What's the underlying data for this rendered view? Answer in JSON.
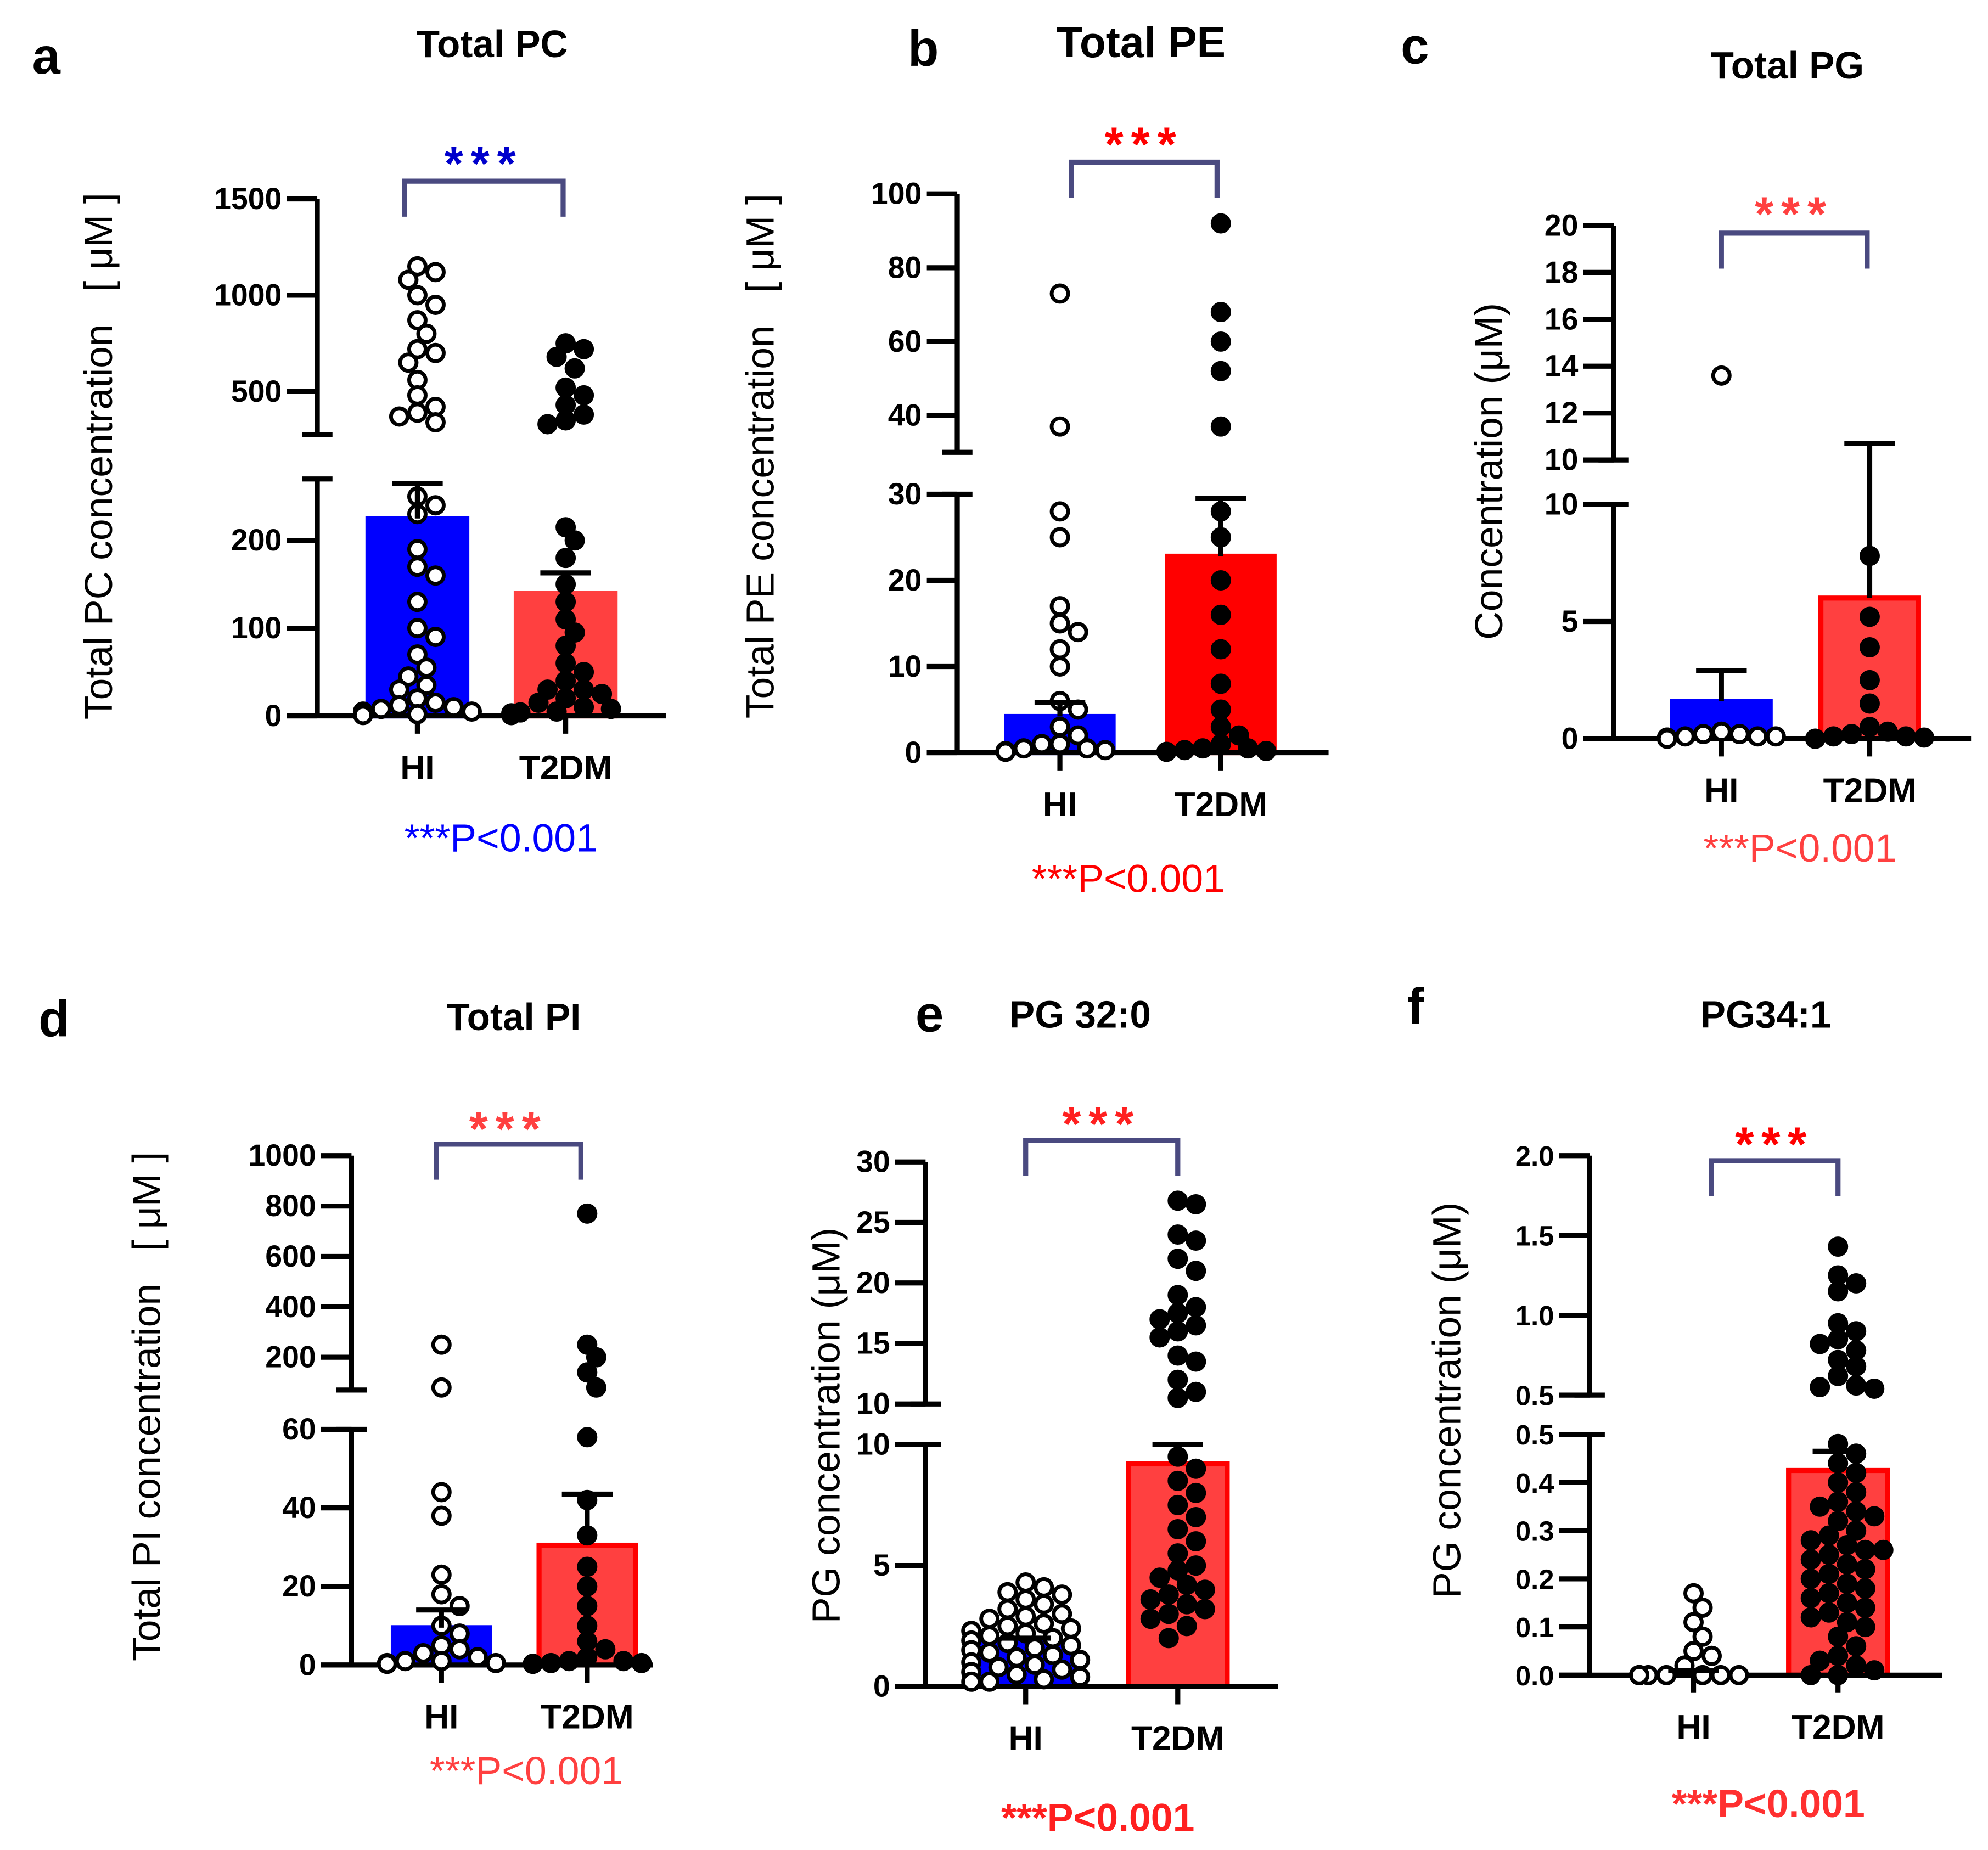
{
  "chart_data": [
    {
      "type": "bar",
      "letter": "a",
      "title": "Total PC",
      "ylabel": "Total PC concentration   [ μM ]",
      "ylabel_bold": false,
      "categories": [
        "HI",
        "T2DM"
      ],
      "lower_range": [
        0,
        270
      ],
      "lower_ticks": [
        "0",
        "100",
        "200"
      ],
      "upper_range": [
        276,
        1500
      ],
      "upper_ticks": [
        "500",
        "1000",
        "1500"
      ],
      "series": [
        {
          "name": "HI",
          "mean": 225,
          "sem_top": 265,
          "color": "#0000ff",
          "border": "#0000ff",
          "marker": "open",
          "points": [
            1150,
            1120,
            1080,
            1000,
            950,
            870,
            800,
            720,
            700,
            650,
            560,
            480,
            420,
            390,
            370,
            340,
            250,
            240,
            230,
            190,
            170,
            160,
            130,
            100,
            90,
            70,
            55,
            45,
            35,
            30,
            20,
            15,
            12,
            10,
            8,
            5,
            5,
            3,
            2,
            1
          ]
        },
        {
          "name": "T2DM",
          "mean": 140,
          "sem_top": 163,
          "color": "#ff4040",
          "border": "#ff4040",
          "marker": "filled",
          "points": [
            750,
            720,
            680,
            620,
            520,
            480,
            430,
            380,
            350,
            330,
            215,
            200,
            180,
            150,
            130,
            110,
            95,
            80,
            60,
            50,
            40,
            30,
            25,
            20,
            15,
            10,
            8,
            5,
            4,
            3,
            2,
            1,
            1,
            30
          ]
        }
      ],
      "significance": "***",
      "sig_color": "#0000cc",
      "p_text": "***P<0.001",
      "p_color": "#0000ff",
      "p_bold": false
    },
    {
      "type": "bar",
      "letter": "b",
      "title": "Total PE",
      "ylabel": "Total PE concentration   [ μM ]",
      "ylabel_bold": false,
      "categories": [
        "HI",
        "T2DM"
      ],
      "lower_range": [
        0,
        30
      ],
      "lower_ticks": [
        "0",
        "10",
        "20",
        "30"
      ],
      "upper_range": [
        30,
        100
      ],
      "upper_ticks": [
        "40",
        "60",
        "80",
        "100"
      ],
      "series": [
        {
          "name": "HI",
          "mean": 4.2,
          "sem_top": 5.8,
          "color": "#0000ff",
          "border": "#0000ff",
          "marker": "open",
          "points": [
            73,
            37,
            28,
            25,
            17,
            15,
            14,
            12,
            10,
            6,
            5,
            3,
            2,
            1,
            1,
            0.5,
            0.5,
            0.3,
            0.2,
            0.1
          ]
        },
        {
          "name": "T2DM",
          "mean": 22.8,
          "sem_top": 29.5,
          "color": "#ff0000",
          "border": "#ff0000",
          "marker": "filled",
          "points": [
            92,
            68,
            60,
            52,
            37,
            28,
            25,
            20,
            16,
            12,
            8,
            5,
            3,
            2,
            1,
            0.5,
            0.5,
            0.3,
            0.2,
            0.1
          ]
        }
      ],
      "significance": "***",
      "sig_color": "#ff0000",
      "p_text": "***P<0.001",
      "p_color": "#ff0000",
      "p_bold": false
    },
    {
      "type": "bar",
      "letter": "c",
      "title": "Total PG",
      "ylabel": "Concentration (μM)",
      "ylabel_bold": false,
      "categories": [
        "HI",
        "T2DM"
      ],
      "lower_range": [
        0,
        10
      ],
      "lower_ticks": [
        "0",
        "5",
        "10"
      ],
      "upper_range": [
        10,
        20
      ],
      "upper_ticks": [
        "10",
        "12",
        "14",
        "16",
        "18",
        "20"
      ],
      "series": [
        {
          "name": "HI",
          "mean": 1.6,
          "sem_top": 2.9,
          "color": "#0000ff",
          "border": "#0000ff",
          "marker": "open",
          "points": [
            13.6,
            0.3,
            0.2,
            0.2,
            0.1,
            0.1,
            0.1,
            0.05,
            0.05,
            0
          ]
        },
        {
          "name": "T2DM",
          "mean": 6.0,
          "sem_top": 10.7,
          "color": "#ff4040",
          "border": "#ff0000",
          "marker": "filled",
          "points": [
            7.8,
            5.2,
            3.9,
            2.5,
            1.5,
            0.5,
            0.3,
            0.2,
            0.1,
            0.1,
            0.05,
            0,
            0,
            0
          ]
        }
      ],
      "significance": "***",
      "sig_color": "#ff4040",
      "p_text": "***P<0.001",
      "p_color": "#ff4040",
      "p_bold": false
    },
    {
      "type": "bar",
      "letter": "d",
      "title": "Total PI",
      "ylabel": "Total PI concentration   [ μM ]",
      "ylabel_bold": false,
      "categories": [
        "HI",
        "T2DM"
      ],
      "lower_range": [
        0,
        60
      ],
      "lower_ticks": [
        "0",
        "20",
        "40",
        "60"
      ],
      "upper_range": [
        70,
        1000
      ],
      "upper_ticks": [
        "200",
        "400",
        "600",
        "800",
        "1000"
      ],
      "series": [
        {
          "name": "HI",
          "mean": 9.5,
          "sem_top": 14,
          "color": "#0000ff",
          "border": "#0000ff",
          "marker": "open",
          "points": [
            250,
            80,
            44,
            38,
            23,
            18,
            15,
            10,
            8,
            5,
            4,
            3,
            2,
            1,
            1,
            0.5,
            0.5,
            0.3
          ]
        },
        {
          "name": "T2DM",
          "mean": 30.5,
          "sem_top": 43.5,
          "color": "#ff4040",
          "border": "#ff0000",
          "marker": "filled",
          "points": [
            770,
            250,
            200,
            140,
            80,
            58,
            42,
            33,
            25,
            20,
            15,
            10,
            6,
            4,
            2,
            1,
            1,
            0.5,
            0.5,
            0.3
          ]
        }
      ],
      "significance": "***",
      "sig_color": "#ff4040",
      "p_text": "***P<0.001",
      "p_color": "#ff4040",
      "p_bold": false
    },
    {
      "type": "bar",
      "letter": "e",
      "title": "PG 32:0",
      "ylabel": "PG concentration (μM)",
      "ylabel_bold": false,
      "categories": [
        "HI",
        "T2DM"
      ],
      "lower_range": [
        0,
        10
      ],
      "lower_ticks": [
        "0",
        "5",
        "10"
      ],
      "upper_range": [
        10,
        30
      ],
      "upper_ticks": [
        "10",
        "15",
        "20",
        "25",
        "30"
      ],
      "series": [
        {
          "name": "HI",
          "mean": 1.8,
          "sem_top": 2.0,
          "color": "#0000ff",
          "border": "#0000ff",
          "marker": "open",
          "points": [
            4.3,
            4.1,
            3.9,
            3.8,
            3.6,
            3.4,
            3.2,
            3.0,
            2.9,
            2.8,
            2.6,
            2.5,
            2.4,
            2.3,
            2.2,
            2.1,
            2.0,
            1.9,
            1.8,
            1.7,
            1.6,
            1.5,
            1.4,
            1.3,
            1.2,
            1.1,
            1.0,
            0.9,
            0.8,
            0.7,
            0.6,
            0.5,
            0.4,
            0.3,
            0.2,
            0.2
          ]
        },
        {
          "name": "T2DM",
          "mean": 9.2,
          "sem_top": 10.0,
          "color": "#ff4040",
          "border": "#ff0000",
          "marker": "filled",
          "points": [
            26.8,
            26.5,
            24,
            23.5,
            22,
            21,
            19,
            18,
            17.5,
            17,
            16.5,
            16,
            15.5,
            14,
            13.5,
            12,
            11,
            10.5,
            9.5,
            9,
            8.5,
            8,
            7.5,
            7,
            6.5,
            6,
            5.5,
            5,
            4.8,
            4.5,
            4.2,
            4,
            3.8,
            3.6,
            3.4,
            3.2,
            3,
            2.8,
            2.5,
            2
          ]
        }
      ],
      "significance": "***",
      "sig_color": "#ff2020",
      "p_text": "***P<0.001",
      "p_color": "#ff2020",
      "p_bold": true
    },
    {
      "type": "bar",
      "letter": "f",
      "title": "PG34:1",
      "ylabel": "PG concentration (μM)",
      "ylabel_bold": false,
      "categories": [
        "HI",
        "T2DM"
      ],
      "lower_range": [
        0,
        0.5
      ],
      "lower_ticks": [
        "0.0",
        "0.1",
        "0.2",
        "0.3",
        "0.4",
        "0.5"
      ],
      "upper_range": [
        0.5,
        2.0
      ],
      "upper_ticks": [
        "0.5",
        "1.0",
        "1.5",
        "2.0"
      ],
      "series": [
        {
          "name": "HI",
          "mean": 0.005,
          "sem_top": 0.01,
          "color": "#0000ff",
          "border": "#0000ff",
          "marker": "open",
          "points": [
            0.17,
            0.14,
            0.11,
            0.08,
            0.05,
            0.04,
            0.02,
            0,
            0,
            0,
            0,
            0,
            0,
            0,
            0,
            0,
            0
          ]
        },
        {
          "name": "T2DM",
          "mean": 0.425,
          "sem_top": 0.465,
          "color": "#ff4040",
          "border": "#ff0000",
          "marker": "filled",
          "points": [
            1.43,
            1.25,
            1.2,
            1.15,
            0.95,
            0.9,
            0.85,
            0.82,
            0.78,
            0.72,
            0.68,
            0.62,
            0.56,
            0.55,
            0.54,
            0.48,
            0.46,
            0.44,
            0.42,
            0.4,
            0.38,
            0.36,
            0.35,
            0.34,
            0.33,
            0.32,
            0.3,
            0.29,
            0.28,
            0.27,
            0.26,
            0.26,
            0.25,
            0.24,
            0.23,
            0.22,
            0.21,
            0.2,
            0.19,
            0.18,
            0.17,
            0.16,
            0.15,
            0.14,
            0.13,
            0.12,
            0.11,
            0.1,
            0.08,
            0.06,
            0.04,
            0.03,
            0.02,
            0.01,
            0,
            0
          ]
        }
      ],
      "significance": "***",
      "sig_color": "#ff0000",
      "p_text": "***P<0.001",
      "p_color": "#ff3030",
      "p_bold": true
    }
  ]
}
